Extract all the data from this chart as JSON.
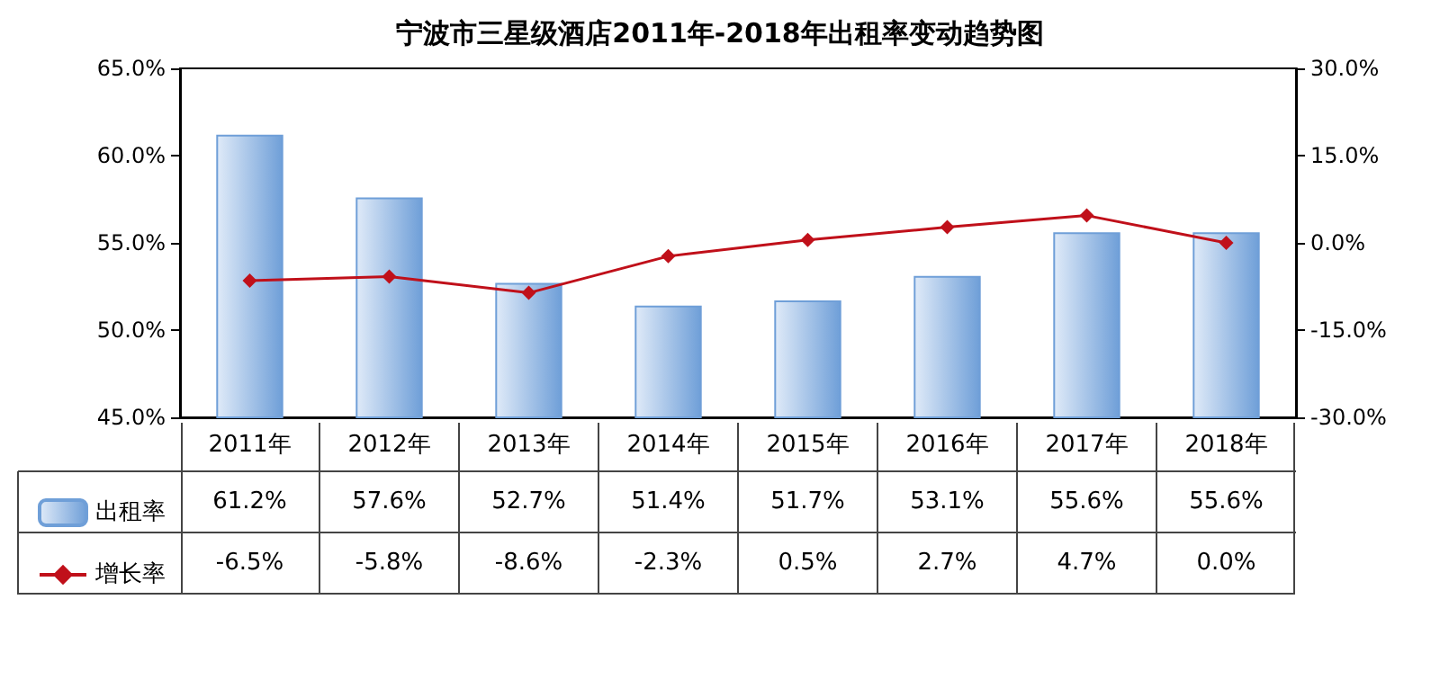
{
  "chart_data": {
    "type": "bar",
    "title": "宁波市三星级酒店2011年-2018年出租率变动趋势图",
    "categories": [
      "2011年",
      "2012年",
      "2013年",
      "2014年",
      "2015年",
      "2016年",
      "2017年",
      "2018年"
    ],
    "series": [
      {
        "name": "出租率",
        "type": "bar",
        "color": "#6f9fd8",
        "values": [
          61.2,
          57.6,
          52.7,
          51.4,
          51.7,
          53.1,
          55.6,
          55.6
        ],
        "value_labels": [
          "61.2%",
          "57.6%",
          "52.7%",
          "51.4%",
          "51.7%",
          "53.1%",
          "55.6%",
          "55.6%"
        ]
      },
      {
        "name": "增长率",
        "type": "line",
        "axis": "y2",
        "color": "#c0101a",
        "values": [
          -6.5,
          -5.8,
          -8.6,
          -2.3,
          0.5,
          2.7,
          4.7,
          0.0
        ],
        "value_labels": [
          "-6.5%",
          "-5.8%",
          "-8.6%",
          "-2.3%",
          "0.5%",
          "2.7%",
          "4.7%",
          "0.0%"
        ]
      }
    ],
    "ylim": [
      45,
      65
    ],
    "yticks": [
      {
        "value": 45,
        "label": "45.0%"
      },
      {
        "value": 50,
        "label": "50.0%"
      },
      {
        "value": 55,
        "label": "55.0%"
      },
      {
        "value": 60,
        "label": "60.0%"
      },
      {
        "value": 65,
        "label": "65.0%"
      }
    ],
    "y2lim": [
      -30,
      30
    ],
    "y2ticks": [
      {
        "value": -30,
        "label": "-30.0%"
      },
      {
        "value": -15,
        "label": "-15.0%"
      },
      {
        "value": 0,
        "label": "0.0%"
      },
      {
        "value": 15,
        "label": "15.0%"
      },
      {
        "value": 30,
        "label": "30.0%"
      }
    ],
    "marker": "diamond",
    "line_style": "solid",
    "grid": false,
    "legend": "bottom left"
  }
}
